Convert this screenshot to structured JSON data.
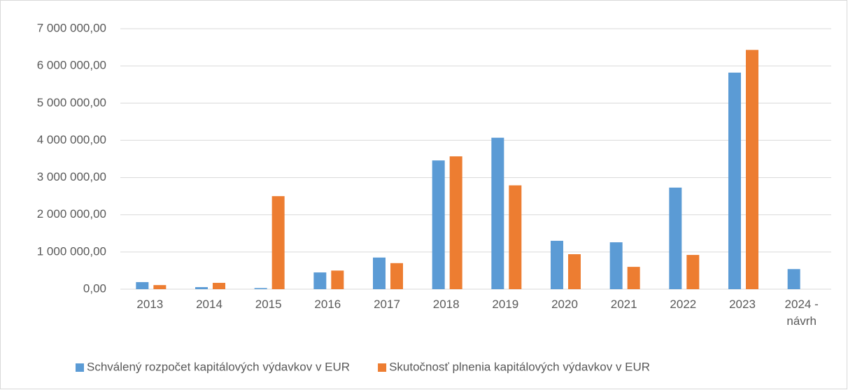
{
  "chart_data": {
    "type": "bar",
    "categories": [
      "2013",
      "2014",
      "2015",
      "2016",
      "2017",
      "2018",
      "2019",
      "2020",
      "2021",
      "2022",
      "2023",
      "2024 - návrh"
    ],
    "series": [
      {
        "name": "Schválený rozpočet kapitálových výdavkov v EUR",
        "color": "#5b9bd5",
        "values": [
          190000,
          55000,
          30000,
          450000,
          850000,
          3460000,
          4070000,
          1300000,
          1260000,
          2730000,
          5820000,
          540000
        ]
      },
      {
        "name": "Skutočnosť plnenia kapitálových výdavkov v EUR",
        "color": "#ed7d31",
        "values": [
          110000,
          170000,
          2500000,
          500000,
          700000,
          3570000,
          2790000,
          940000,
          600000,
          920000,
          6430000,
          null
        ]
      }
    ],
    "ylim": [
      0,
      7000000
    ],
    "yticks": [
      {
        "value": 0,
        "label": "0,00"
      },
      {
        "value": 1000000,
        "label": "1 000 000,00"
      },
      {
        "value": 2000000,
        "label": "2 000 000,00"
      },
      {
        "value": 3000000,
        "label": "3 000 000,00"
      },
      {
        "value": 4000000,
        "label": "4 000 000,00"
      },
      {
        "value": 5000000,
        "label": "5 000 000,00"
      },
      {
        "value": 6000000,
        "label": "6 000 000,00"
      },
      {
        "value": 7000000,
        "label": "7 000 000,00"
      }
    ],
    "grid": true,
    "legend": "bottom"
  }
}
